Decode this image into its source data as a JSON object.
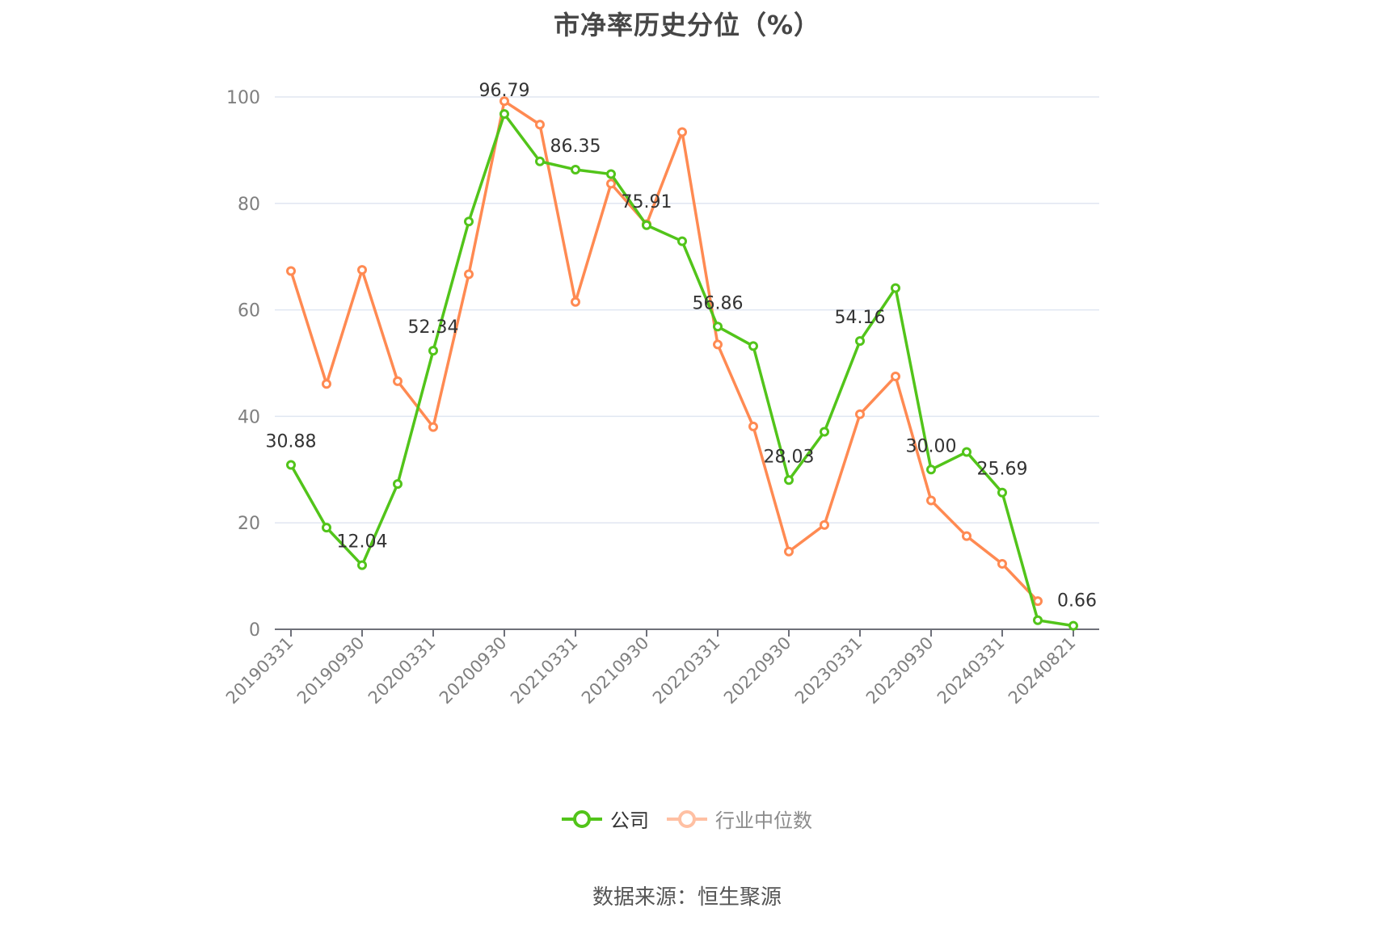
{
  "title": "市净率历史分位（%）",
  "legend": {
    "items": [
      {
        "label": "公司",
        "color": "#52c41a",
        "active": true
      },
      {
        "label": "行业中位数",
        "color": "#ff8a52",
        "faded_color": "#ffc0a3",
        "active": false
      }
    ]
  },
  "source": "数据来源：恒生聚源",
  "chart_data": {
    "type": "line",
    "title": "市净率历史分位（%）",
    "xlabel": "",
    "ylabel": "",
    "ylim": [
      0,
      100
    ],
    "yticks": [
      0,
      20,
      40,
      60,
      80,
      100
    ],
    "grid": true,
    "legend_position": "bottom",
    "x_tick_labels": [
      "20190331",
      "20190930",
      "20200331",
      "20200930",
      "20210331",
      "20210930",
      "20220331",
      "20220930",
      "20230331",
      "20230930",
      "20240331",
      "20240821"
    ],
    "x_count": 23,
    "x_tick_indices": [
      0,
      2,
      4,
      6,
      8,
      10,
      12,
      14,
      16,
      18,
      20,
      22
    ],
    "series": [
      {
        "name": "公司",
        "color": "#52c41a",
        "values": [
          30.88,
          19.1,
          12.04,
          27.3,
          52.34,
          76.6,
          96.79,
          87.9,
          86.35,
          85.5,
          75.91,
          72.9,
          56.86,
          53.2,
          28.03,
          37.1,
          54.16,
          64.1,
          30.0,
          33.3,
          25.69,
          1.7,
          0.66
        ],
        "labels": {
          "0": "30.88",
          "2": "12.04",
          "4": "52.34",
          "6": "96.79",
          "8": "86.35",
          "10": "75.91",
          "12": "56.86",
          "14": "28.03",
          "16": "54.16",
          "18": "30.00",
          "20": "25.69",
          "22": "0.66"
        }
      },
      {
        "name": "行业中位数",
        "color": "#ff8a52",
        "values": [
          67.3,
          46.1,
          67.5,
          46.6,
          38.0,
          66.7,
          99.2,
          94.8,
          61.5,
          83.7,
          76.1,
          93.4,
          53.5,
          38.1,
          14.6,
          19.6,
          40.4,
          47.5,
          24.2,
          17.5,
          12.3,
          5.3,
          null
        ]
      }
    ]
  }
}
